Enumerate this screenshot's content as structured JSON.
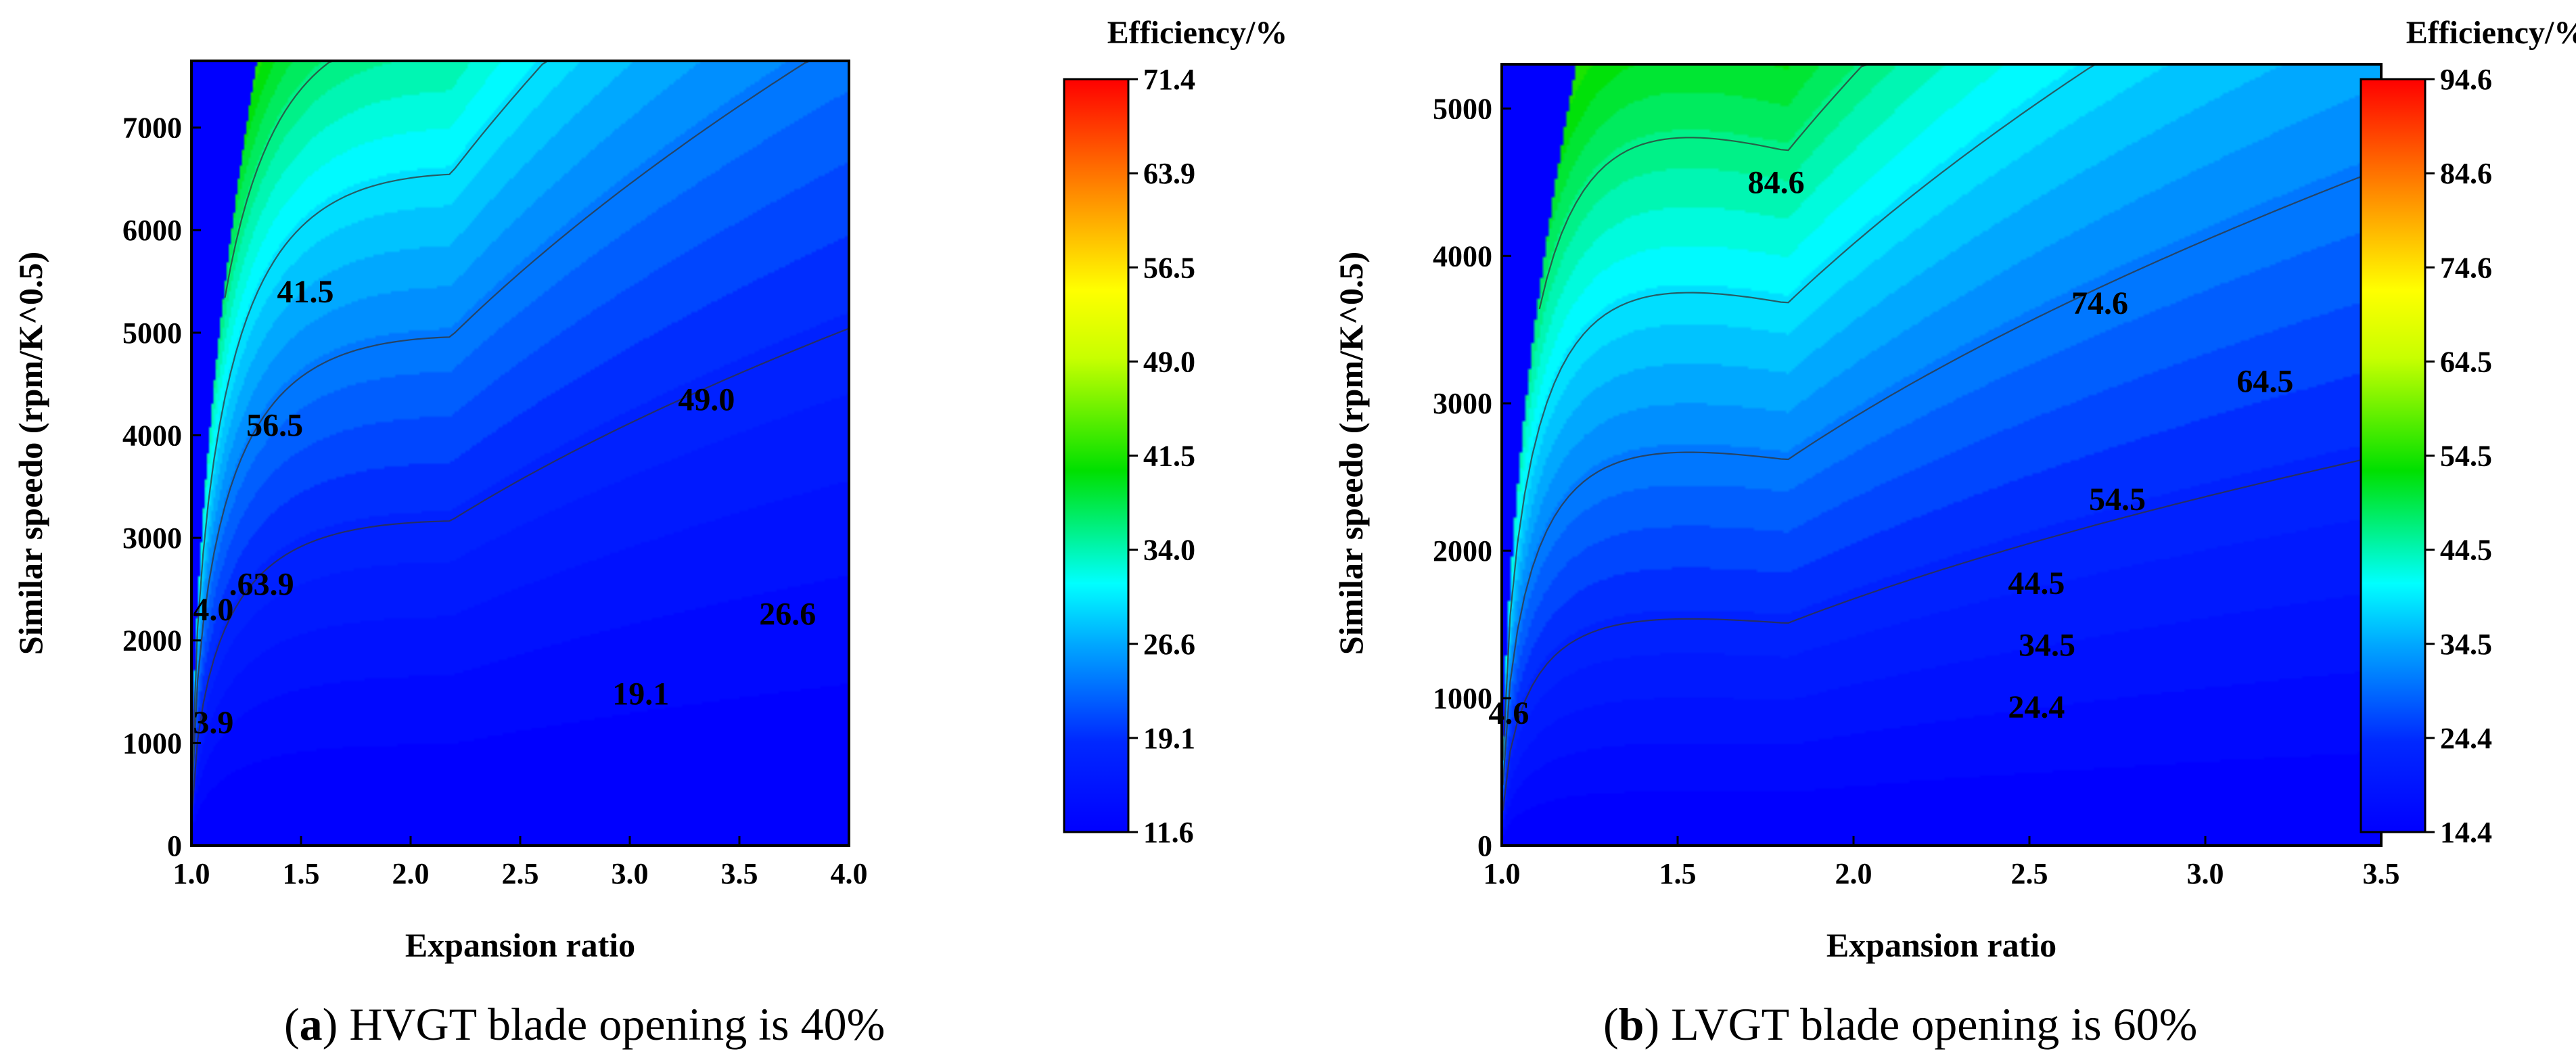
{
  "chart_data": [
    {
      "type": "heatmap",
      "subtype": "filled-contour",
      "xlabel": "Expansion ratio",
      "ylabel": "Similar speedo  (rpm/K^0.5)",
      "xlim": [
        1.0,
        4.0
      ],
      "ylim": [
        0,
        7650
      ],
      "xticks": [
        "1.0",
        "1.5",
        "2.0",
        "2.5",
        "3.0",
        "3.5",
        "4.0"
      ],
      "yticks": [
        "0",
        "1000",
        "2000",
        "3000",
        "4000",
        "5000",
        "6000",
        "7000"
      ],
      "colorbar_title": "Efficiency/%",
      "colorbar_ticks": [
        "71.4",
        "63.9",
        "56.5",
        "49.0",
        "41.5",
        "34.0",
        "26.6",
        "19.1",
        "11.6"
      ],
      "zmin": 11.6,
      "zmax": 71.4,
      "contour_labels": [
        {
          "text": "41.5",
          "x": 1.52,
          "y": 5400
        },
        {
          "text": "56.5",
          "x": 1.38,
          "y": 4100
        },
        {
          "text": "4.0",
          "x": 1.1,
          "y": 2300
        },
        {
          "text": ".63.9",
          "x": 1.32,
          "y": 2550
        },
        {
          "text": "3.9",
          "x": 1.1,
          "y": 1200
        },
        {
          "text": "49.0",
          "x": 3.35,
          "y": 4350
        },
        {
          "text": "26.6",
          "x": 3.72,
          "y": 2260
        },
        {
          "text": "19.1",
          "x": 3.05,
          "y": 1480
        }
      ],
      "caption_letter": "a",
      "caption_text": " HVGT blade opening is 40%"
    },
    {
      "type": "heatmap",
      "subtype": "filled-contour",
      "xlabel": "Expansion ratio",
      "ylabel": "Similar speedo  (rpm/K^0.5)",
      "xlim": [
        1.0,
        3.5
      ],
      "ylim": [
        0,
        5300
      ],
      "xticks": [
        "1.0",
        "1.5",
        "2.0",
        "2.5",
        "3.0",
        "3.5"
      ],
      "yticks": [
        "0",
        "1000",
        "2000",
        "3000",
        "4000",
        "5000"
      ],
      "colorbar_title": "Efficiency/%",
      "colorbar_ticks": [
        "94.6",
        "84.6",
        "74.6",
        "64.5",
        "54.5",
        "44.5",
        "34.5",
        "24.4",
        "14.4"
      ],
      "zmin": 14.4,
      "zmax": 94.6,
      "contour_labels": [
        {
          "text": "84.6",
          "x": 1.78,
          "y": 4500
        },
        {
          "text": "74.6",
          "x": 2.7,
          "y": 3680
        },
        {
          "text": "64.5",
          "x": 3.17,
          "y": 3150
        },
        {
          "text": "54.5",
          "x": 2.75,
          "y": 2350
        },
        {
          "text": "44.5",
          "x": 2.52,
          "y": 1780
        },
        {
          "text": "34.5",
          "x": 2.55,
          "y": 1360
        },
        {
          "text": "24.4",
          "x": 2.52,
          "y": 940
        },
        {
          "text": "4.6",
          "x": 1.02,
          "y": 900
        }
      ],
      "caption_letter": "b",
      "caption_text": " LVGT blade opening is 60%"
    }
  ]
}
